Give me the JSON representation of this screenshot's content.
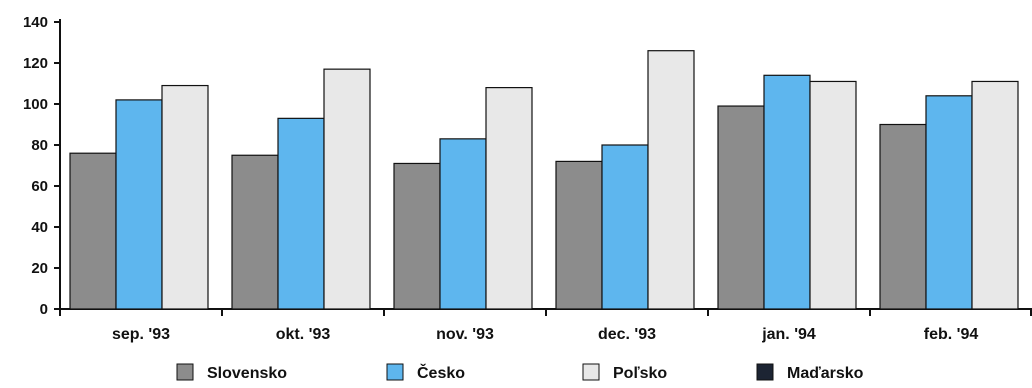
{
  "chart_data": {
    "type": "bar",
    "title": "",
    "xlabel": "",
    "ylabel": "",
    "ylim": [
      0,
      140
    ],
    "yticks": [
      0,
      20,
      40,
      60,
      80,
      100,
      120,
      140
    ],
    "grid": false,
    "legend_position": "bottom",
    "categories": [
      "sep. '93",
      "okt. '93",
      "nov. '93",
      "dec. '93",
      "jan. '94",
      "feb. '94"
    ],
    "series": [
      {
        "name": "Slovensko",
        "color": "#8c8c8c",
        "values": [
          76,
          75,
          71,
          72,
          99,
          90
        ]
      },
      {
        "name": "Česko",
        "color": "#5eb6ee",
        "values": [
          102,
          93,
          83,
          80,
          114,
          104
        ]
      },
      {
        "name": "Poľsko",
        "color": "#e8e8e8",
        "values": [
          109,
          117,
          108,
          126,
          111,
          111
        ]
      },
      {
        "name": "Maďarsko",
        "color": "#1c2433",
        "values": [
          null,
          null,
          null,
          null,
          null,
          null
        ]
      }
    ]
  }
}
